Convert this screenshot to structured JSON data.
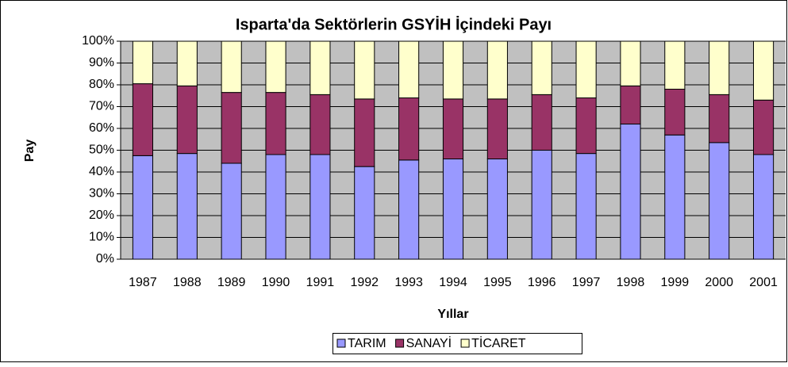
{
  "chart_data": {
    "type": "bar",
    "stacked": true,
    "title": "Isparta'da Sektörlerin GSYİH İçindeki Payı",
    "x_label": "Yıllar",
    "y_label": "Pay",
    "categories": [
      "1987",
      "1988",
      "1989",
      "1990",
      "1991",
      "1992",
      "1993",
      "1994",
      "1995",
      "1996",
      "1997",
      "1998",
      "1999",
      "2000",
      "2001"
    ],
    "series": [
      {
        "name": "TARIM",
        "color": "#9999ff",
        "values": [
          47.5,
          48.5,
          44,
          48,
          48,
          42.5,
          45.5,
          46,
          46,
          50,
          48.5,
          62,
          57,
          53.5,
          48
        ]
      },
      {
        "name": "SANAYİ",
        "color": "#993366",
        "values": [
          33,
          31,
          32.5,
          28.5,
          27.5,
          31,
          28.5,
          27.5,
          27.5,
          25.5,
          25.5,
          17.5,
          21,
          22,
          25
        ]
      },
      {
        "name": "TİCARET",
        "color": "#ffffcc",
        "values": [
          19.5,
          20.5,
          23.5,
          23.5,
          24.5,
          26.5,
          26,
          26.5,
          26.5,
          24.5,
          26,
          20.5,
          22,
          24.5,
          27
        ]
      }
    ],
    "ylim": [
      0,
      100
    ],
    "yticks": [
      {
        "value": 0,
        "label": "0%"
      },
      {
        "value": 10,
        "label": "10%"
      },
      {
        "value": 20,
        "label": "20%"
      },
      {
        "value": 30,
        "label": "30%"
      },
      {
        "value": 40,
        "label": "40%"
      },
      {
        "value": 50,
        "label": "50%"
      },
      {
        "value": 60,
        "label": "60%"
      },
      {
        "value": 70,
        "label": "70%"
      },
      {
        "value": 80,
        "label": "80%"
      },
      {
        "value": 90,
        "label": "90%"
      },
      {
        "value": 100,
        "label": "100%"
      }
    ],
    "grid": true,
    "legend": "bottom"
  }
}
